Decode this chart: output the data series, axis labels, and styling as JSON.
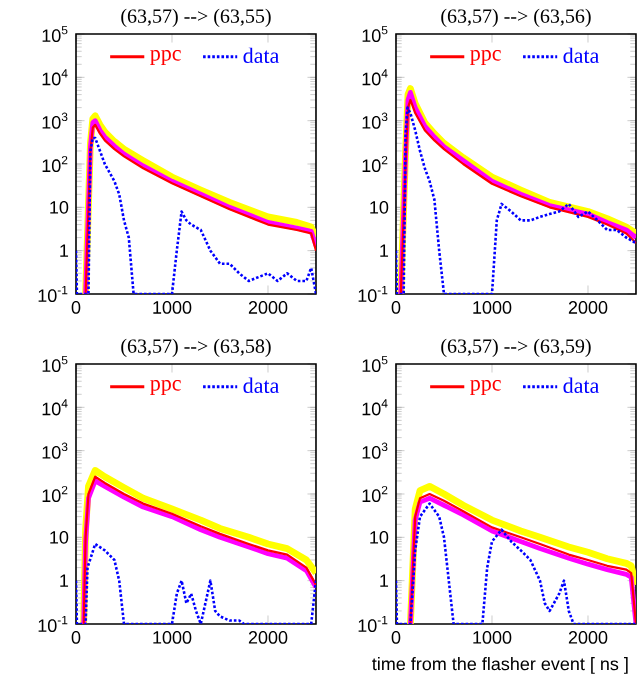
{
  "chart_data": [
    {
      "type": "line",
      "title": "(63,57) --> (63,55)",
      "xlim": [
        0,
        2500
      ],
      "ylim": [
        0.1,
        100000
      ],
      "log": true,
      "legend": "top",
      "xticks": [
        0,
        1000,
        2000
      ],
      "yticks": [
        {
          "value": 0.1,
          "label": "10$^{-1}$"
        },
        1,
        10,
        {
          "value": 100,
          "label": "10$^{2}$"
        },
        {
          "value": 1000,
          "label": "10$^{3}$"
        },
        {
          "value": 10000,
          "label": "10$^{4}$"
        },
        {
          "value": 100000,
          "label": "10$^{5}$"
        }
      ],
      "series": [
        {
          "color": "#ffff00",
          "x": [
            100,
            150,
            175,
            200,
            250,
            300,
            400,
            500,
            700,
            1000,
            1300,
            1600,
            2000,
            2300,
            2450,
            2500
          ],
          "values": [
            0.1,
            300,
            1100,
            1300,
            800,
            550,
            330,
            220,
            120,
            50,
            25,
            13,
            6,
            4.5,
            3.5,
            2
          ]
        },
        {
          "color": "#ff00ff",
          "x": [
            100,
            150,
            175,
            200,
            250,
            300,
            400,
            500,
            700,
            1000,
            1300,
            1600,
            2000,
            2300,
            2450,
            2500
          ],
          "values": [
            0.1,
            250,
            900,
            1000,
            600,
            420,
            260,
            170,
            90,
            40,
            20,
            10,
            4.5,
            3.3,
            2.8,
            1.3
          ]
        },
        {
          "name": "ppc",
          "color": "#ff0000",
          "line_style": "solid",
          "x": [
            100,
            150,
            175,
            200,
            250,
            300,
            400,
            500,
            700,
            1000,
            1300,
            1600,
            2000,
            2300,
            2450,
            2500
          ],
          "values": [
            0.1,
            200,
            700,
            800,
            500,
            350,
            220,
            150,
            80,
            36,
            18,
            9,
            4,
            3,
            2.5,
            1
          ]
        },
        {
          "name": "data",
          "color": "#0000ff",
          "line_style": "dotted",
          "x": [
            0,
            10,
            130,
            150,
            175,
            200,
            250,
            300,
            400,
            450,
            500,
            550,
            600,
            1000,
            1050,
            1100,
            1150,
            1200,
            1300,
            1400,
            1500,
            1600,
            1700,
            1800,
            2000,
            2100,
            2200,
            2300,
            2400,
            2450,
            2500
          ],
          "values": [
            1,
            0.1,
            0.1,
            200,
            400,
            400,
            200,
            100,
            40,
            20,
            5,
            2,
            0.1,
            0.1,
            1,
            8,
            5,
            4,
            3,
            1,
            0.5,
            0.5,
            0.3,
            0.2,
            0.3,
            0.2,
            0.3,
            0.2,
            0.2,
            0.4,
            0.1
          ]
        }
      ]
    },
    {
      "type": "line",
      "title": "(63,57) --> (63,56)",
      "xlim": [
        0,
        2500
      ],
      "ylim": [
        0.1,
        100000
      ],
      "log": true,
      "legend": "top",
      "xticks": [
        0,
        1000,
        2000
      ],
      "yticks": [
        {
          "value": 0.1,
          "label": "10$^{-1}$"
        },
        1,
        10,
        {
          "value": 100,
          "label": "10$^{2}$"
        },
        {
          "value": 1000,
          "label": "10$^{3}$"
        },
        {
          "value": 10000,
          "label": "10$^{4}$"
        },
        {
          "value": 100000,
          "label": "10$^{5}$"
        }
      ],
      "series": [
        {
          "color": "#ffff00",
          "x": [
            50,
            100,
            125,
            150,
            200,
            300,
            400,
            500,
            700,
            1000,
            1300,
            1600,
            2000,
            2200,
            2400,
            2500
          ],
          "values": [
            0.1,
            200,
            4000,
            5500,
            2500,
            900,
            500,
            300,
            140,
            50,
            25,
            13,
            8,
            5.5,
            3.5,
            2.5
          ]
        },
        {
          "color": "#ff00ff",
          "x": [
            50,
            100,
            125,
            150,
            200,
            300,
            400,
            500,
            700,
            1000,
            1300,
            1600,
            2000,
            2200,
            2400,
            2500
          ],
          "values": [
            0.1,
            150,
            3000,
            4500,
            2000,
            750,
            420,
            250,
            120,
            40,
            20,
            11,
            7,
            4.5,
            3,
            2
          ]
        },
        {
          "name": "ppc",
          "color": "#ff0000",
          "line_style": "solid",
          "x": [
            50,
            100,
            125,
            150,
            200,
            300,
            400,
            500,
            700,
            1000,
            1300,
            1600,
            2000,
            2200,
            2400,
            2500
          ],
          "values": [
            0.1,
            100,
            2000,
            3000,
            1500,
            600,
            350,
            220,
            100,
            35,
            18,
            10,
            6,
            4,
            2.5,
            1.5
          ]
        },
        {
          "name": "data",
          "color": "#0000ff",
          "line_style": "dotted",
          "x": [
            0,
            10,
            80,
            100,
            120,
            150,
            200,
            250,
            300,
            350,
            400,
            450,
            500,
            1000,
            1050,
            1100,
            1200,
            1300,
            1400,
            1500,
            1600,
            1700,
            1800,
            1900,
            2000,
            2100,
            2200,
            2300,
            2400,
            2500
          ],
          "values": [
            1,
            0.1,
            0.1,
            500,
            2000,
            1500,
            600,
            200,
            80,
            40,
            15,
            1,
            0.1,
            0.1,
            5,
            12,
            8,
            5,
            5,
            6,
            7,
            8,
            12,
            6,
            8,
            5,
            3,
            3,
            2,
            1.5
          ]
        }
      ]
    },
    {
      "type": "line",
      "title": "(63,57) --> (63,58)",
      "xlim": [
        0,
        2500
      ],
      "ylim": [
        0.1,
        100000
      ],
      "log": true,
      "legend": "top",
      "xticks": [
        0,
        1000,
        2000
      ],
      "yticks": [
        {
          "value": 0.1,
          "label": "10$^{-1}$"
        },
        1,
        10,
        {
          "value": 100,
          "label": "10$^{2}$"
        },
        {
          "value": 1000,
          "label": "10$^{3}$"
        },
        {
          "value": 10000,
          "label": "10$^{4}$"
        },
        {
          "value": 100000,
          "label": "10$^{5}$"
        }
      ],
      "series": [
        {
          "color": "#ffff00",
          "x": [
            80,
            100,
            130,
            200,
            300,
            500,
            700,
            1000,
            1300,
            1500,
            1800,
            2000,
            2200,
            2400,
            2500
          ],
          "values": [
            0.1,
            15,
            150,
            350,
            250,
            140,
            80,
            45,
            25,
            16,
            10,
            7,
            5.5,
            3,
            1.5
          ]
        },
        {
          "color": "#ff00ff",
          "x": [
            80,
            100,
            130,
            200,
            300,
            500,
            700,
            1000,
            1300,
            1500,
            1800,
            2000,
            2200,
            2400,
            2500
          ],
          "values": [
            0.1,
            8,
            80,
            200,
            150,
            85,
            50,
            30,
            15,
            10,
            6,
            4.2,
            3.3,
            1.7,
            0.7
          ]
        },
        {
          "name": "ppc",
          "color": "#ff0000",
          "line_style": "solid",
          "x": [
            80,
            100,
            130,
            200,
            300,
            500,
            700,
            1000,
            1300,
            1500,
            1800,
            2000,
            2200,
            2400,
            2500
          ],
          "values": [
            0.1,
            10,
            100,
            250,
            180,
            100,
            60,
            35,
            18,
            12,
            7,
            5,
            4,
            2,
            0.8
          ]
        },
        {
          "name": "data",
          "color": "#0000ff",
          "line_style": "dotted",
          "x": [
            0,
            10,
            100,
            120,
            200,
            300,
            400,
            450,
            500,
            1000,
            1050,
            1100,
            1150,
            1200,
            1250,
            1300,
            1400,
            1450,
            1500,
            1600,
            1700,
            1750,
            2450,
            2500
          ],
          "values": [
            1,
            0.1,
            0.1,
            2,
            7,
            5,
            3,
            1,
            0.1,
            0.1,
            0.5,
            1,
            0.3,
            0.5,
            0.2,
            0.1,
            1,
            0.2,
            0.15,
            0.12,
            0.12,
            0.1,
            0.1,
            1
          ]
        }
      ]
    },
    {
      "type": "line",
      "title": "(63,57) --> (63,59)",
      "xlabel": "time from the flasher event [ ns ]",
      "xlim": [
        0,
        2500
      ],
      "ylim": [
        0.1,
        100000
      ],
      "log": true,
      "legend": "top",
      "xticks": [
        0,
        1000,
        2000
      ],
      "yticks": [
        {
          "value": 0.1,
          "label": "10$^{-1}$"
        },
        1,
        10,
        {
          "value": 100,
          "label": "10$^{2}$"
        },
        {
          "value": 1000,
          "label": "10$^{3}$"
        },
        {
          "value": 10000,
          "label": "10$^{4}$"
        },
        {
          "value": 100000,
          "label": "10$^{5}$"
        }
      ],
      "series": [
        {
          "color": "#ffff00",
          "x": [
            150,
            200,
            250,
            350,
            500,
            700,
            1000,
            1300,
            1500,
            1800,
            2000,
            2200,
            2400,
            2450,
            2500
          ],
          "values": [
            0.1,
            45,
            120,
            150,
            100,
            55,
            25,
            14,
            10,
            6,
            4.5,
            3.2,
            2.5,
            2.2,
            0.8
          ]
        },
        {
          "color": "#ff00ff",
          "x": [
            150,
            200,
            250,
            350,
            500,
            700,
            1000,
            1300,
            1500,
            1800,
            2000,
            2200,
            2400,
            2450,
            2500
          ],
          "values": [
            0.1,
            25,
            65,
            80,
            55,
            33,
            14,
            8,
            5.5,
            3.3,
            2.4,
            1.8,
            1.4,
            1.2,
            0.1
          ]
        },
        {
          "name": "ppc",
          "color": "#ff0000",
          "line_style": "solid",
          "x": [
            150,
            200,
            250,
            350,
            500,
            700,
            1000,
            1300,
            1500,
            1800,
            2000,
            2200,
            2400,
            2450,
            2500
          ],
          "values": [
            0.1,
            30,
            80,
            100,
            70,
            40,
            17,
            10,
            7,
            4,
            3,
            2.2,
            1.8,
            1.5,
            0.1
          ]
        },
        {
          "name": "data",
          "color": "#0000ff",
          "line_style": "dotted",
          "x": [
            0,
            10,
            150,
            200,
            250,
            350,
            450,
            500,
            550,
            600,
            900,
            950,
            1000,
            1100,
            1200,
            1300,
            1400,
            1500,
            1550,
            1600,
            1700,
            1750,
            1800,
            1850,
            2500
          ],
          "values": [
            1,
            0.1,
            0.1,
            5,
            30,
            60,
            30,
            10,
            1,
            0.1,
            0.1,
            2,
            8,
            15,
            8,
            5,
            3,
            1,
            0.3,
            0.2,
            0.5,
            1,
            0.2,
            0.1,
            0.1
          ]
        }
      ]
    }
  ]
}
